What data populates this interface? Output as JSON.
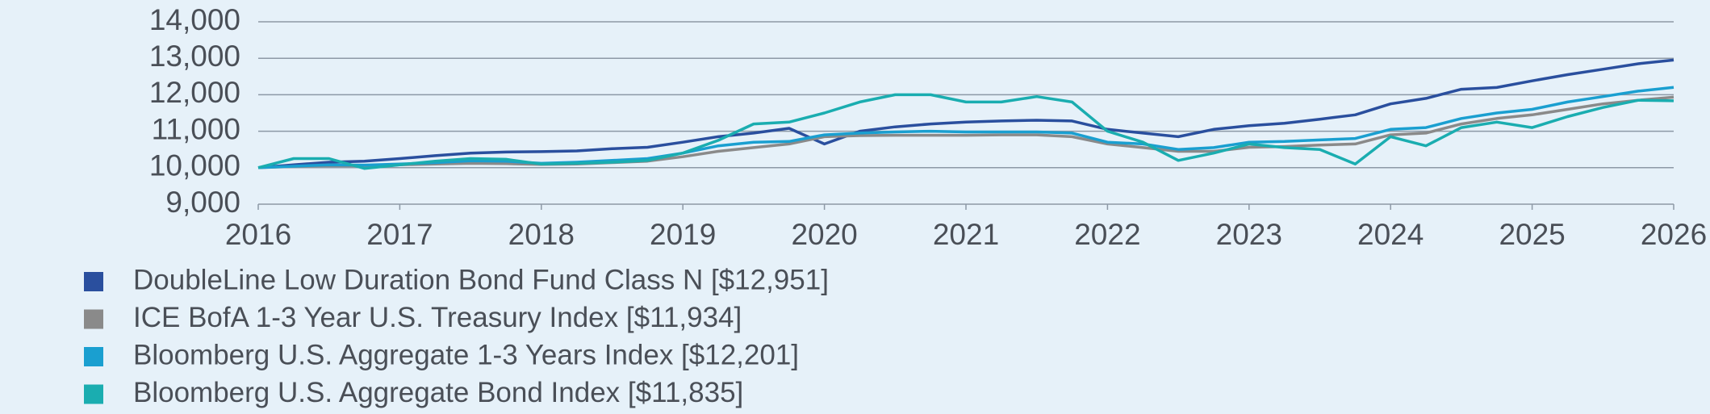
{
  "chart_data": {
    "type": "line",
    "x": [
      2016,
      2016.25,
      2016.5,
      2016.75,
      2017,
      2017.25,
      2017.5,
      2017.75,
      2018,
      2018.25,
      2018.5,
      2018.75,
      2019,
      2019.25,
      2019.5,
      2019.75,
      2020,
      2020.25,
      2020.5,
      2020.75,
      2021,
      2021.25,
      2021.5,
      2021.75,
      2022,
      2022.25,
      2022.5,
      2022.75,
      2023,
      2023.25,
      2023.5,
      2023.75,
      2024,
      2024.25,
      2024.5,
      2024.75,
      2025,
      2025.25,
      2025.5,
      2025.75,
      2026
    ],
    "series": [
      {
        "name": "DoubleLine Low Duration Bond Fund Class N [$12,951]",
        "color": "#2a4f9e",
        "values": [
          10000,
          10080,
          10150,
          10180,
          10250,
          10330,
          10400,
          10430,
          10440,
          10460,
          10520,
          10560,
          10700,
          10850,
          10950,
          11080,
          10650,
          11000,
          11120,
          11200,
          11250,
          11280,
          11300,
          11280,
          11050,
          10950,
          10850,
          11050,
          11150,
          11220,
          11330,
          11450,
          11750,
          11900,
          12150,
          12200,
          12380,
          12550,
          12700,
          12850,
          12951
        ]
      },
      {
        "name": "ICE BofA 1-3 Year U.S. Treasury Index [$11,934]",
        "color": "#8a8a8a",
        "values": [
          10000,
          10030,
          10060,
          10050,
          10080,
          10100,
          10120,
          10110,
          10090,
          10100,
          10140,
          10180,
          10300,
          10450,
          10550,
          10650,
          10850,
          10880,
          10890,
          10890,
          10890,
          10900,
          10900,
          10850,
          10650,
          10550,
          10450,
          10450,
          10560,
          10580,
          10620,
          10650,
          10900,
          10950,
          11200,
          11350,
          11450,
          11600,
          11750,
          11850,
          11934
        ]
      },
      {
        "name": "Bloomberg U.S. Aggregate 1-3 Years Index [$12,201]",
        "color": "#1a9fd0",
        "values": [
          10000,
          10040,
          10080,
          10070,
          10100,
          10140,
          10190,
          10180,
          10120,
          10150,
          10200,
          10250,
          10400,
          10600,
          10700,
          10720,
          10900,
          10950,
          10980,
          11000,
          10980,
          10980,
          10980,
          10950,
          10700,
          10650,
          10500,
          10550,
          10700,
          10720,
          10760,
          10800,
          11050,
          11100,
          11350,
          11500,
          11600,
          11800,
          11950,
          12100,
          12201
        ]
      },
      {
        "name": "Bloomberg U.S. Aggregate Bond Index [$11,835]",
        "color": "#1aadb0",
        "values": [
          10000,
          10250,
          10250,
          9980,
          10080,
          10180,
          10250,
          10230,
          10100,
          10120,
          10150,
          10200,
          10400,
          10750,
          11200,
          11250,
          11500,
          11800,
          12000,
          12000,
          11800,
          11800,
          11950,
          11800,
          11000,
          10700,
          10200,
          10400,
          10650,
          10550,
          10500,
          10100,
          10850,
          10600,
          11100,
          11250,
          11100,
          11400,
          11650,
          11850,
          11835
        ]
      }
    ],
    "xlim": [
      2016,
      2026
    ],
    "xticks": [
      2016,
      2017,
      2018,
      2019,
      2020,
      2021,
      2022,
      2023,
      2024,
      2025,
      2026
    ],
    "ylim": [
      9000,
      14000
    ],
    "yticks": [
      {
        "value": 9000,
        "label": "9,000"
      },
      {
        "value": 10000,
        "label": "10,000"
      },
      {
        "value": 11000,
        "label": "11,000"
      },
      {
        "value": 12000,
        "label": "12,000"
      },
      {
        "value": 13000,
        "label": "13,000"
      },
      {
        "value": 14000,
        "label": "14,000"
      }
    ],
    "grid": true
  }
}
